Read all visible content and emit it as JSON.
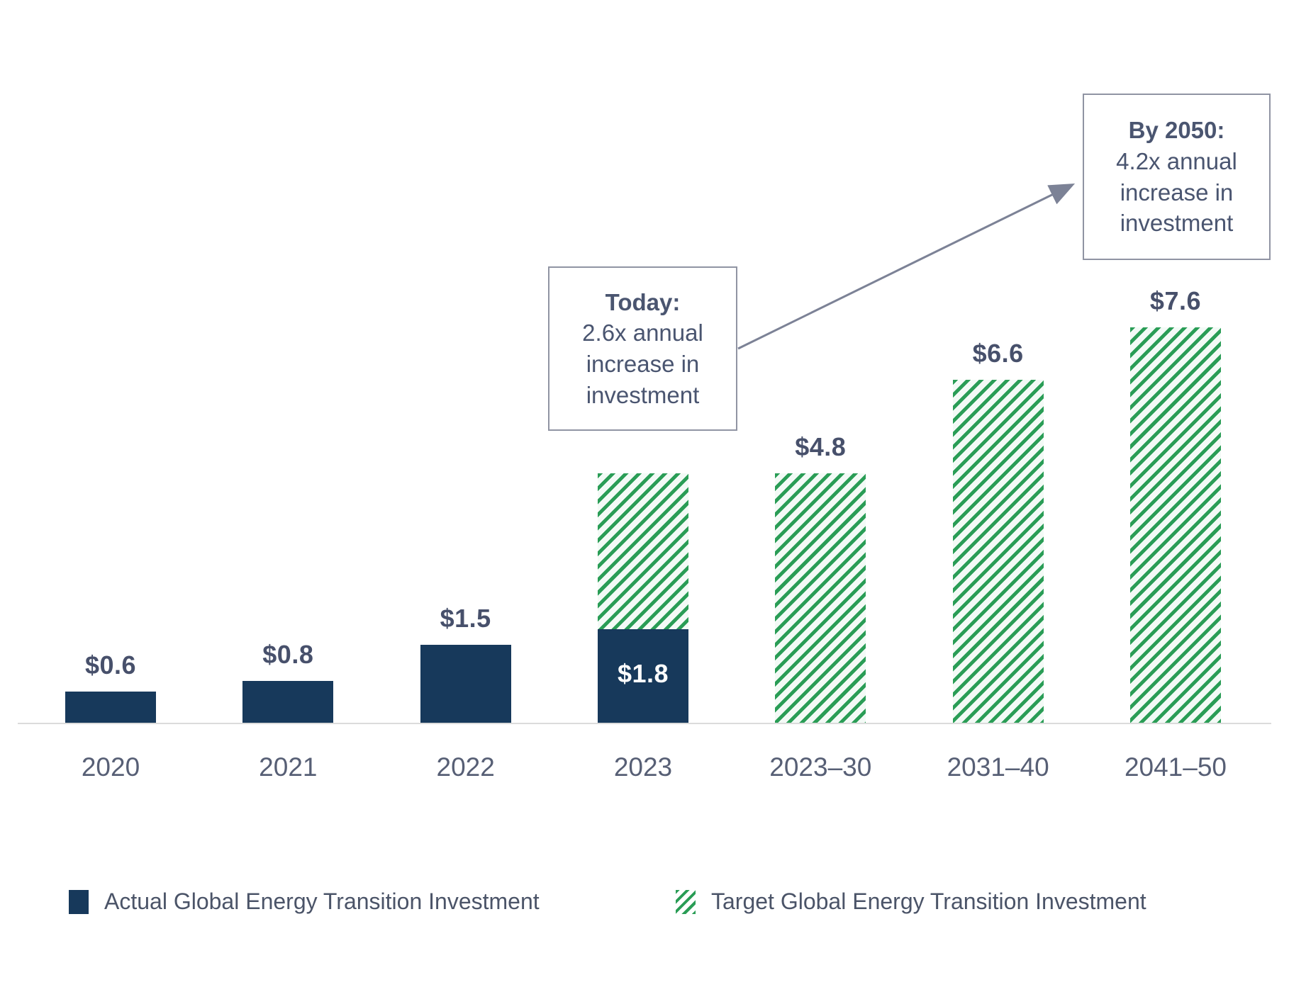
{
  "chart_data": {
    "type": "bar",
    "categories": [
      "2020",
      "2021",
      "2022",
      "2023",
      "2023–30",
      "2031–40",
      "2041–50"
    ],
    "series": [
      {
        "name": "Actual Global Energy Transition Investment",
        "values": [
          0.6,
          0.8,
          1.5,
          1.8,
          null,
          null,
          null
        ]
      },
      {
        "name": "Target Global Energy Transition Investment",
        "values": [
          null,
          null,
          null,
          4.8,
          4.8,
          6.6,
          7.6
        ]
      }
    ],
    "value_labels": [
      "$0.6",
      "$0.8",
      "$1.5",
      "$1.8",
      "$4.8",
      "$6.6",
      "$7.6"
    ],
    "label_placement": [
      "above",
      "above",
      "above",
      "inside",
      "above",
      "above",
      "above"
    ],
    "title": "",
    "xlabel": "",
    "ylabel": "",
    "ylim": [
      0,
      8
    ],
    "grid": false,
    "legend_position": "bottom",
    "stacked_column": "2023",
    "annotations": [
      {
        "title": "Today:",
        "body": "2.6x annual increase in investment"
      },
      {
        "title": "By 2050:",
        "body": "4.2x annual increase in investment"
      }
    ]
  },
  "annotations": {
    "today": {
      "title": "Today:",
      "body": "2.6x annual increase in investment"
    },
    "by2050": {
      "title": "By 2050:",
      "body": "4.2x annual increase in investment"
    }
  },
  "legend": {
    "actual_label": "Actual Global Energy Transition Investment",
    "target_label": "Target Global Energy Transition Investment"
  },
  "colors": {
    "actual_bar": "#17395B",
    "target_hatch_green": "#2A9D56",
    "hatch_background": "#F3FAF6",
    "value_label_text": "#47506B",
    "inside_label_text": "#FFFFFF",
    "axis_label_text": "#575F75",
    "axis_line": "#DBDBDB",
    "annotation_text": "#4A5570",
    "annotation_border": "#9094A3",
    "arrow": "#7C8296"
  }
}
